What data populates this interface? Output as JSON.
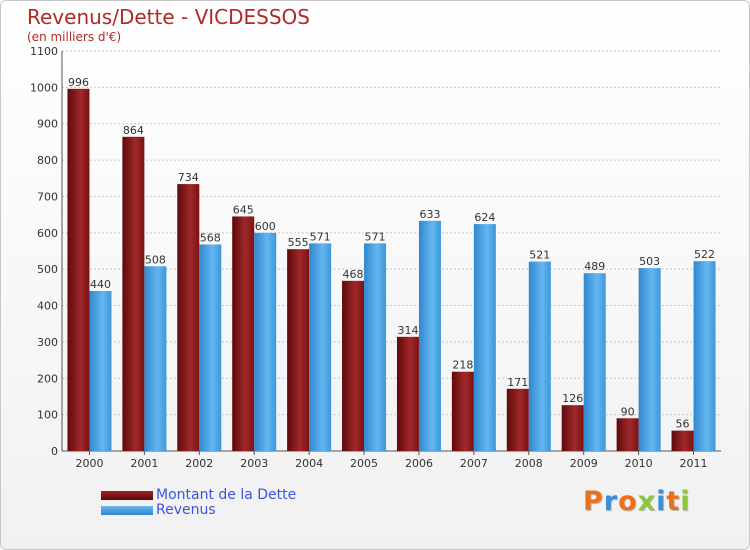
{
  "chart_data": {
    "type": "bar",
    "title": "Revenus/Dette - VICDESSOS",
    "subtitle": "(en milliers d'€)",
    "categories": [
      "2000",
      "2001",
      "2002",
      "2003",
      "2004",
      "2005",
      "2006",
      "2007",
      "2008",
      "2009",
      "2010",
      "2011"
    ],
    "series": [
      {
        "name": "Montant de la Dette",
        "color": "#7a0f10",
        "values": [
          996,
          864,
          734,
          645,
          555,
          468,
          314,
          218,
          171,
          126,
          90,
          56
        ]
      },
      {
        "name": "Revenus",
        "color": "#4aa3e6",
        "values": [
          440,
          508,
          568,
          600,
          571,
          571,
          633,
          624,
          521,
          489,
          503,
          522
        ]
      }
    ],
    "ylim": [
      0,
      1100
    ],
    "yticks": [
      0,
      100,
      200,
      300,
      400,
      500,
      600,
      700,
      800,
      900,
      1000,
      1100
    ],
    "grid": true,
    "legend": "bottom-left"
  },
  "logo": {
    "letters": [
      {
        "ch": "P",
        "color": "#e8711a"
      },
      {
        "ch": "r",
        "color": "#3b8fd8"
      },
      {
        "ch": "o",
        "color": "#e8711a"
      },
      {
        "ch": "x",
        "color": "#8cc63f"
      },
      {
        "ch": "i",
        "color": "#3b8fd8"
      },
      {
        "ch": "t",
        "color": "#e8711a"
      },
      {
        "ch": "i",
        "color": "#8cc63f"
      }
    ]
  }
}
